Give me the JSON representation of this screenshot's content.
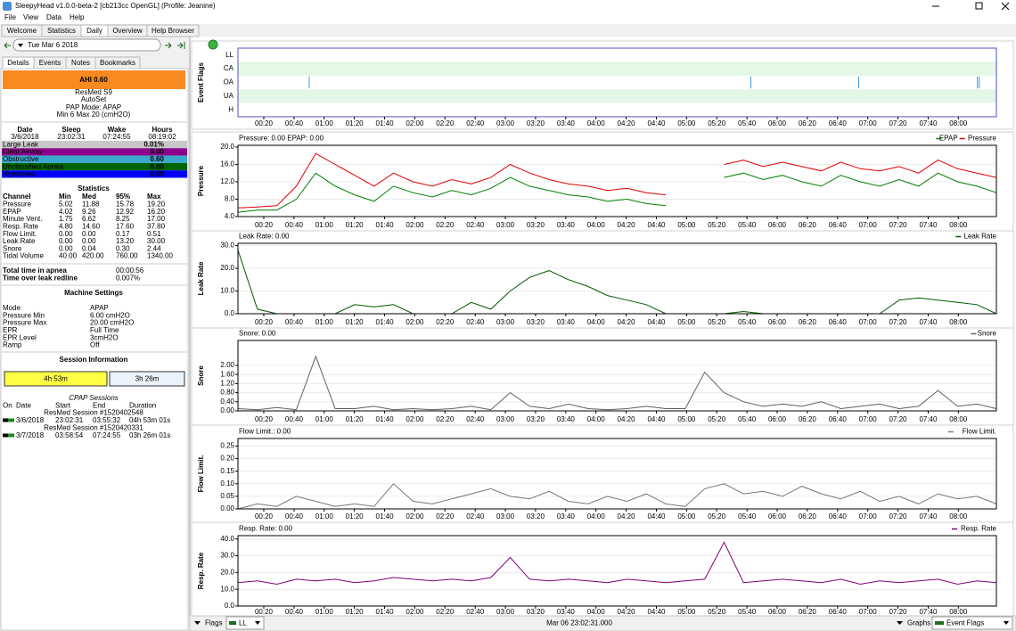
{
  "window": {
    "title": "SleepyHead v1.0.0-beta-2 [cb213cc OpenGL] (Profile: Jeanine)",
    "menu": [
      "File",
      "View",
      "Data",
      "Help"
    ],
    "tabs": [
      "Welcome",
      "Statistics",
      "Daily",
      "Overview",
      "Help Browser"
    ]
  },
  "sidebar": {
    "date": "Tue Mar 6 2018",
    "tabs": [
      "Details",
      "Events",
      "Notes",
      "Bookmarks"
    ],
    "ahi": "AHI 0.60",
    "machine": [
      "ResMed S9",
      "AutoSet",
      "PAP Mode: APAP",
      "Min 6 Max 20 (cmH2O)"
    ],
    "sleep_table": {
      "header": [
        "Date",
        "Sleep",
        "Wake",
        "Hours"
      ],
      "row": [
        "3/6/2018",
        "23:02:31",
        "07:24:55",
        "08:19:02"
      ]
    },
    "indices": [
      {
        "name": "Large Leak",
        "value": "0.01%",
        "color": "#c8c8c8"
      },
      {
        "name": "Clear Airway",
        "value": "0.00",
        "color": "#8b008b"
      },
      {
        "name": "Obstructive",
        "value": "0.60",
        "color": "#3aa8cc"
      },
      {
        "name": "Unclassified Apnea",
        "value": "0.00",
        "color": "#006400"
      },
      {
        "name": "Hypopnea",
        "value": "0.00",
        "color": "#0000ff"
      }
    ],
    "statistics": {
      "title": "Statistics",
      "header": [
        "Channel",
        "Min",
        "Med",
        "95%",
        "Max"
      ],
      "rows": [
        [
          "Pressure",
          "5.02",
          "11.88",
          "15.78",
          "19.20"
        ],
        [
          "EPAP",
          "4.02",
          "9.26",
          "12.92",
          "16.20"
        ],
        [
          "Minute Vent.",
          "1.75",
          "6.62",
          "8.25",
          "17.00"
        ],
        [
          "Resp. Rate",
          "4.80",
          "14.60",
          "17.60",
          "37.80"
        ],
        [
          "Flow Limit.",
          "0.00",
          "0.00",
          "0.17",
          "0.51"
        ],
        [
          "Leak Rate",
          "0.00",
          "0.00",
          "13.20",
          "30.00"
        ],
        [
          "Snore",
          "0.00",
          "0.04",
          "0.30",
          "2.44"
        ],
        [
          "Tidal Volume",
          "40.00",
          "420.00",
          "760.00",
          "1340.00"
        ]
      ]
    },
    "totals": [
      [
        "Total time in apnea",
        "00:00:56"
      ],
      [
        "Time over leak redline",
        "0.007%"
      ]
    ],
    "machine_settings": {
      "title": "Machine Settings",
      "rows": [
        [
          "Mode",
          "APAP"
        ],
        [
          "Pressure Min",
          "6.00 cmH2O"
        ],
        [
          "Pressure Max",
          "20.00 cmH2O"
        ],
        [
          "EPR",
          "Full Time"
        ],
        [
          "EPR Level",
          "3cmH2O"
        ],
        [
          "Ramp",
          "Off"
        ]
      ]
    },
    "session_info": {
      "title": "Session Information",
      "bars": [
        "4h 53m",
        "3h 26m"
      ]
    },
    "cpap_sessions": {
      "title": "CPAP Sessions",
      "header": [
        "On",
        "Date",
        "Start",
        "End",
        "Duration"
      ],
      "sessions": [
        {
          "name": "ResMed Session #1520402548",
          "row": [
            "3/6/2018",
            "23:02:31",
            "03:55:32",
            "04h 53m 01s"
          ]
        },
        {
          "name": "ResMed Session #1520420331",
          "row": [
            "3/7/2018",
            "03:58:54",
            "07:24:55",
            "03h 26m 01s"
          ]
        }
      ]
    }
  },
  "time_axis": {
    "xlim": [
      0.048,
      8.42
    ],
    "xticks": [
      {
        "value": 0.333,
        "label": "00:20"
      },
      {
        "value": 0.667,
        "label": "00:40"
      },
      {
        "value": 1,
        "label": "01:00"
      },
      {
        "value": 1.333,
        "label": "01:20"
      },
      {
        "value": 1.667,
        "label": "01:40"
      },
      {
        "value": 2,
        "label": "02:00"
      },
      {
        "value": 2.333,
        "label": "02:20"
      },
      {
        "value": 2.667,
        "label": "02:40"
      },
      {
        "value": 3,
        "label": "03:00"
      },
      {
        "value": 3.333,
        "label": "03:20"
      },
      {
        "value": 3.667,
        "label": "03:40"
      },
      {
        "value": 4,
        "label": "04:00"
      },
      {
        "value": 4.333,
        "label": "04:20"
      },
      {
        "value": 4.667,
        "label": "04:40"
      },
      {
        "value": 5,
        "label": "05:00"
      },
      {
        "value": 5.333,
        "label": "05:20"
      },
      {
        "value": 5.667,
        "label": "05:40"
      },
      {
        "value": 6,
        "label": "06:00"
      },
      {
        "value": 6.333,
        "label": "06:20"
      },
      {
        "value": 6.667,
        "label": "06:40"
      },
      {
        "value": 7,
        "label": "07:00"
      },
      {
        "value": 7.333,
        "label": "07:20"
      },
      {
        "value": 7.667,
        "label": "07:40"
      },
      {
        "value": 8,
        "label": "08:00"
      }
    ]
  },
  "event_flags": {
    "ylabel": "Event Flags",
    "rows": [
      "LL",
      "CA",
      "OA",
      "UA",
      "H"
    ],
    "color": "#3c9be0",
    "marks": [
      [],
      [],
      [
        0.835,
        5.71,
        6.9,
        8.21,
        8.23
      ],
      [],
      []
    ]
  },
  "graphs": [
    {
      "ylabel": "Pressure",
      "header": "Pressure: 0.00 EPAP: 0.00",
      "ylim": [
        4,
        20.4
      ],
      "yticks": [
        {
          "value": 4,
          "label": "4.0"
        },
        {
          "value": 8,
          "label": "8.0"
        },
        {
          "value": 12,
          "label": "12.0"
        },
        {
          "value": 16,
          "label": "16.0"
        },
        {
          "value": 20,
          "label": "20.0"
        }
      ],
      "series": [
        {
          "name": "EPAP",
          "color": "#008000",
          "values": [
            5,
            5.5,
            5.5,
            8,
            14,
            11,
            9,
            7.5,
            11,
            9.5,
            8.5,
            10,
            9,
            10.5,
            13,
            11,
            10,
            9,
            8.5,
            7.5,
            8,
            7,
            6.5,
            null,
            null,
            13,
            14,
            12.5,
            13.5,
            12,
            11,
            13.5,
            12,
            11,
            12.5,
            11,
            14,
            12,
            11,
            9.5
          ]
        },
        {
          "name": "Pressure",
          "color": "#e00000",
          "values": [
            6,
            6.2,
            6.5,
            11,
            18.5,
            16,
            13.5,
            11,
            14,
            12,
            11,
            12.5,
            11.5,
            13,
            16,
            14,
            12.5,
            11.5,
            11,
            10,
            10.5,
            9.5,
            9,
            null,
            null,
            16,
            17,
            15.5,
            16.5,
            15.5,
            14.5,
            16.5,
            15,
            14.5,
            15.5,
            14,
            17,
            15,
            14,
            13
          ]
        }
      ]
    },
    {
      "ylabel": "Leak Rate",
      "header": "Leak Rate: 0.00",
      "ylim": [
        0,
        31
      ],
      "yticks": [
        {
          "value": 0,
          "label": "0.0"
        },
        {
          "value": 10,
          "label": "10.0"
        },
        {
          "value": 20,
          "label": "20.0"
        },
        {
          "value": 30,
          "label": "30.0"
        }
      ],
      "series": [
        {
          "name": "Leak Rate",
          "color": "#005a00",
          "values": [
            28,
            2,
            0,
            0,
            0,
            0,
            4,
            3,
            4,
            0,
            0,
            0,
            5,
            2,
            10,
            16,
            19,
            15,
            12,
            8,
            6,
            4,
            0,
            0,
            0,
            0,
            1,
            0,
            0,
            0,
            0,
            0,
            0,
            0,
            6,
            7,
            6,
            5,
            4,
            0
          ]
        }
      ]
    },
    {
      "ylabel": "Snore",
      "header": "Snore: 0.00",
      "ylim": [
        0,
        3.1
      ],
      "yticks": [
        {
          "value": 0,
          "label": "0.00"
        },
        {
          "value": 0.4,
          "label": "0.40"
        },
        {
          "value": 0.8,
          "label": "0.80"
        },
        {
          "value": 1.2,
          "label": "1.20"
        },
        {
          "value": 1.6,
          "label": "1.60"
        },
        {
          "value": 2,
          "label": "2.00"
        }
      ],
      "series": [
        {
          "name": "Snore",
          "color": "#606060",
          "values": [
            0.1,
            0.05,
            0.15,
            0.05,
            2.4,
            0.1,
            0.1,
            0.2,
            0.05,
            0.1,
            0.05,
            0.1,
            0.2,
            0.05,
            0.8,
            0.2,
            0.1,
            0.3,
            0.1,
            0.05,
            0.1,
            0.2,
            0.1,
            0.1,
            1.7,
            0.8,
            0.4,
            0.2,
            0.3,
            0.2,
            0.4,
            0.1,
            0.2,
            0.3,
            0.1,
            0.2,
            0.9,
            0.2,
            0.3,
            0.1
          ]
        }
      ]
    },
    {
      "ylabel": "Flow Limit.",
      "header": "Flow Limit.: 0.00",
      "ylim": [
        0,
        0.28
      ],
      "yticks": [
        {
          "value": 0,
          "label": "0.00"
        },
        {
          "value": 0.05,
          "label": "0.05"
        },
        {
          "value": 0.1,
          "label": "0.10"
        },
        {
          "value": 0.15,
          "label": "0.15"
        },
        {
          "value": 0.2,
          "label": "0.20"
        },
        {
          "value": 0.25,
          "label": "0.25"
        }
      ],
      "series": [
        {
          "name": "Flow Limit.",
          "color": "#777777",
          "values": [
            0,
            0.02,
            0.01,
            0.05,
            0.03,
            0.01,
            0.02,
            0.01,
            0.1,
            0.03,
            0.02,
            0.04,
            0.06,
            0.08,
            0.05,
            0.04,
            0.07,
            0.03,
            0.02,
            0.05,
            0.03,
            0.06,
            0.02,
            0.01,
            0.08,
            0.1,
            0.06,
            0.07,
            0.05,
            0.09,
            0.06,
            0.04,
            0.07,
            0.03,
            0.05,
            0.02,
            0.06,
            0.04,
            0.05,
            0.02
          ]
        }
      ]
    },
    {
      "ylabel": "Resp. Rate",
      "header": "Resp. Rate: 0.00",
      "ylim": [
        0,
        42
      ],
      "yticks": [
        {
          "value": 0,
          "label": "0.0"
        },
        {
          "value": 10,
          "label": "10.0"
        },
        {
          "value": 20,
          "label": "20.0"
        },
        {
          "value": 30,
          "label": "30.0"
        },
        {
          "value": 40,
          "label": "40.0"
        }
      ],
      "series": [
        {
          "name": "Resp. Rate",
          "color": "#800080",
          "values": [
            14,
            15,
            13,
            16,
            15,
            16,
            14,
            15,
            17,
            16,
            15,
            16,
            15,
            17,
            29,
            16,
            15,
            16,
            15,
            14,
            16,
            15,
            14,
            15,
            16,
            38,
            14,
            15,
            16,
            15,
            14,
            16,
            13,
            15,
            14,
            15,
            16,
            13,
            15,
            14
          ]
        }
      ]
    }
  ],
  "statusbar": {
    "flags": "Flags",
    "flag_select": "LL",
    "time": "Mar 06 23:02:31.000",
    "graphs": "Graphs",
    "graph_select": "Event Flags"
  }
}
